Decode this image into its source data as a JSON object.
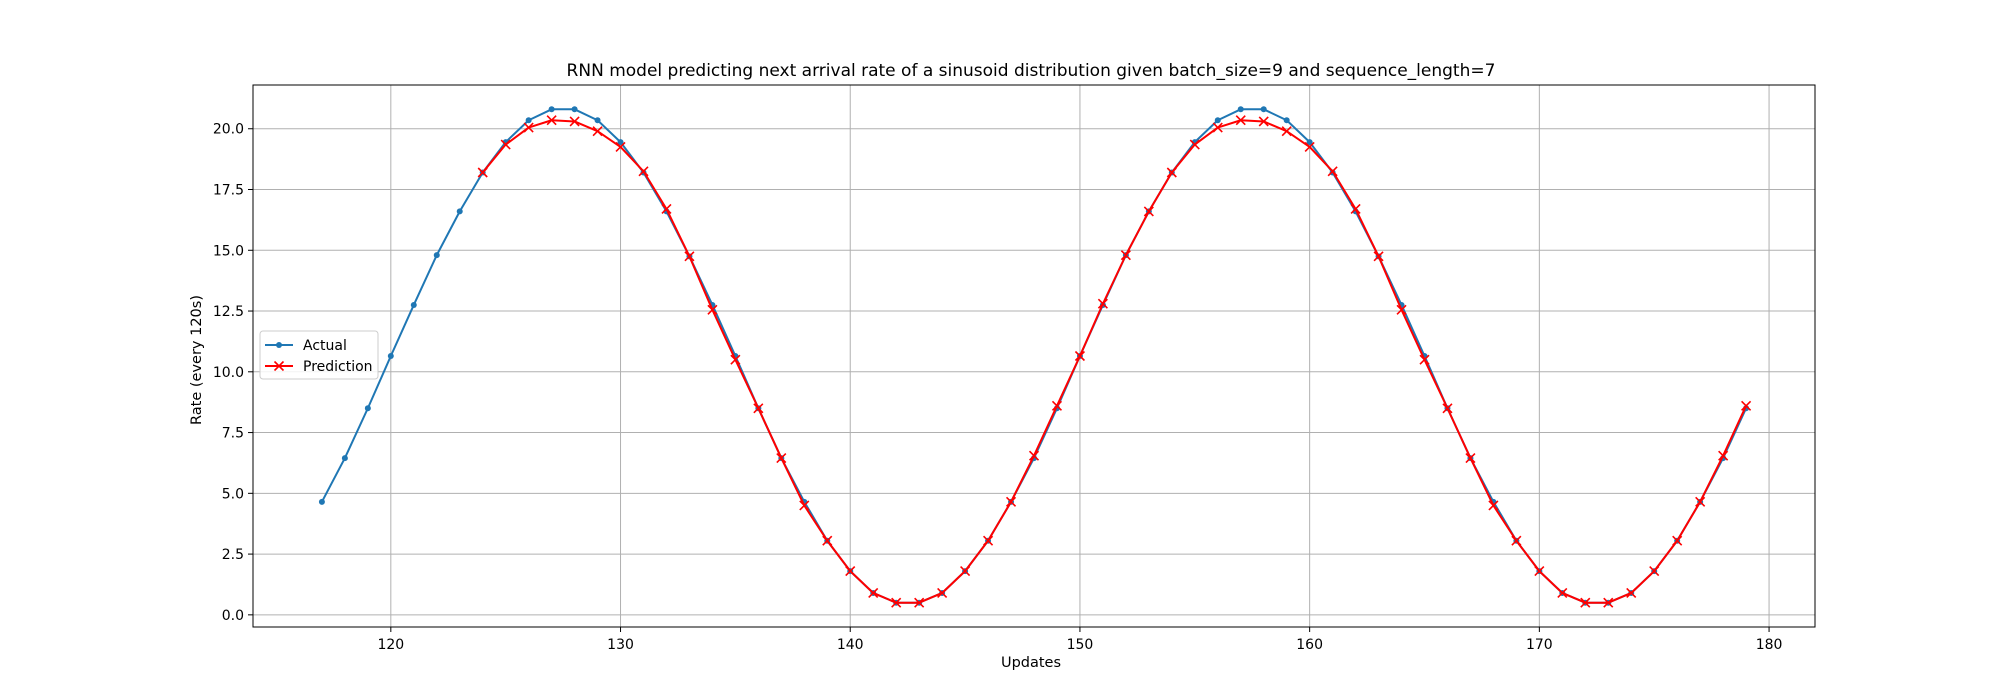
{
  "chart_data": {
    "type": "line",
    "title": "RNN model predicting next arrival rate of a sinusoid distribution given batch_size=9 and sequence_length=7",
    "xlabel": "Updates",
    "ylabel": "Rate (every 120s)",
    "xlim": [
      114,
      182
    ],
    "ylim": [
      -0.5,
      21.8
    ],
    "xticks": [
      120,
      130,
      140,
      150,
      160,
      170,
      180
    ],
    "yticks": [
      0.0,
      2.5,
      5.0,
      7.5,
      10.0,
      12.5,
      15.0,
      17.5,
      20.0
    ],
    "ytick_labels": [
      "0.0",
      "2.5",
      "5.0",
      "7.5",
      "10.0",
      "12.5",
      "15.0",
      "17.5",
      "20.0"
    ],
    "grid": true,
    "legend_position": "center-left",
    "series": [
      {
        "name": "Actual",
        "color": "#1f77b4",
        "marker": "dot",
        "x": [
          117,
          118,
          119,
          120,
          121,
          122,
          123,
          124,
          125,
          126,
          127,
          128,
          129,
          130,
          131,
          132,
          133,
          134,
          135,
          136,
          137,
          138,
          139,
          140,
          141,
          142,
          143,
          144,
          145,
          146,
          147,
          148,
          149,
          150,
          151,
          152,
          153,
          154,
          155,
          156,
          157,
          158,
          159,
          160,
          161,
          162,
          163,
          164,
          165,
          166,
          167,
          168,
          169,
          170,
          171,
          172,
          173,
          174,
          175,
          176,
          177,
          178,
          179
        ],
        "y": [
          4.65,
          6.45,
          8.5,
          10.65,
          12.75,
          14.8,
          16.6,
          18.2,
          19.45,
          20.35,
          20.8,
          20.8,
          20.35,
          19.45,
          18.2,
          16.6,
          14.75,
          12.75,
          10.65,
          8.5,
          6.45,
          4.65,
          3.05,
          1.8,
          0.9,
          0.5,
          0.5,
          0.9,
          1.8,
          3.05,
          4.65,
          6.45,
          8.5,
          10.65,
          12.75,
          14.8,
          16.6,
          18.2,
          19.45,
          20.35,
          20.8,
          20.8,
          20.35,
          19.45,
          18.2,
          16.6,
          14.75,
          12.75,
          10.65,
          8.5,
          6.45,
          4.65,
          3.05,
          1.8,
          0.9,
          0.5,
          0.5,
          0.9,
          1.8,
          3.05,
          4.65,
          6.45,
          8.5
        ]
      },
      {
        "name": "Prediction",
        "color": "#ff0000",
        "marker": "x",
        "x": [
          124,
          125,
          126,
          127,
          128,
          129,
          130,
          131,
          132,
          133,
          134,
          135,
          136,
          137,
          138,
          139,
          140,
          141,
          142,
          143,
          144,
          145,
          146,
          147,
          148,
          149,
          150,
          151,
          152,
          153,
          154,
          155,
          156,
          157,
          158,
          159,
          160,
          161,
          162,
          163,
          164,
          165,
          166,
          167,
          168,
          169,
          170,
          171,
          172,
          173,
          174,
          175,
          176,
          177,
          178,
          179
        ],
        "y": [
          18.2,
          19.35,
          20.05,
          20.35,
          20.3,
          19.9,
          19.25,
          18.25,
          16.7,
          14.75,
          12.55,
          10.5,
          8.5,
          6.45,
          4.5,
          3.05,
          1.8,
          0.9,
          0.5,
          0.5,
          0.9,
          1.8,
          3.05,
          4.65,
          6.55,
          8.6,
          10.65,
          12.8,
          14.8,
          16.6,
          18.2,
          19.35,
          20.05,
          20.35,
          20.3,
          19.9,
          19.25,
          18.25,
          16.7,
          14.75,
          12.55,
          10.5,
          8.5,
          6.45,
          4.5,
          3.05,
          1.8,
          0.9,
          0.5,
          0.5,
          0.9,
          1.8,
          3.05,
          4.65,
          6.55,
          8.6
        ]
      }
    ]
  }
}
